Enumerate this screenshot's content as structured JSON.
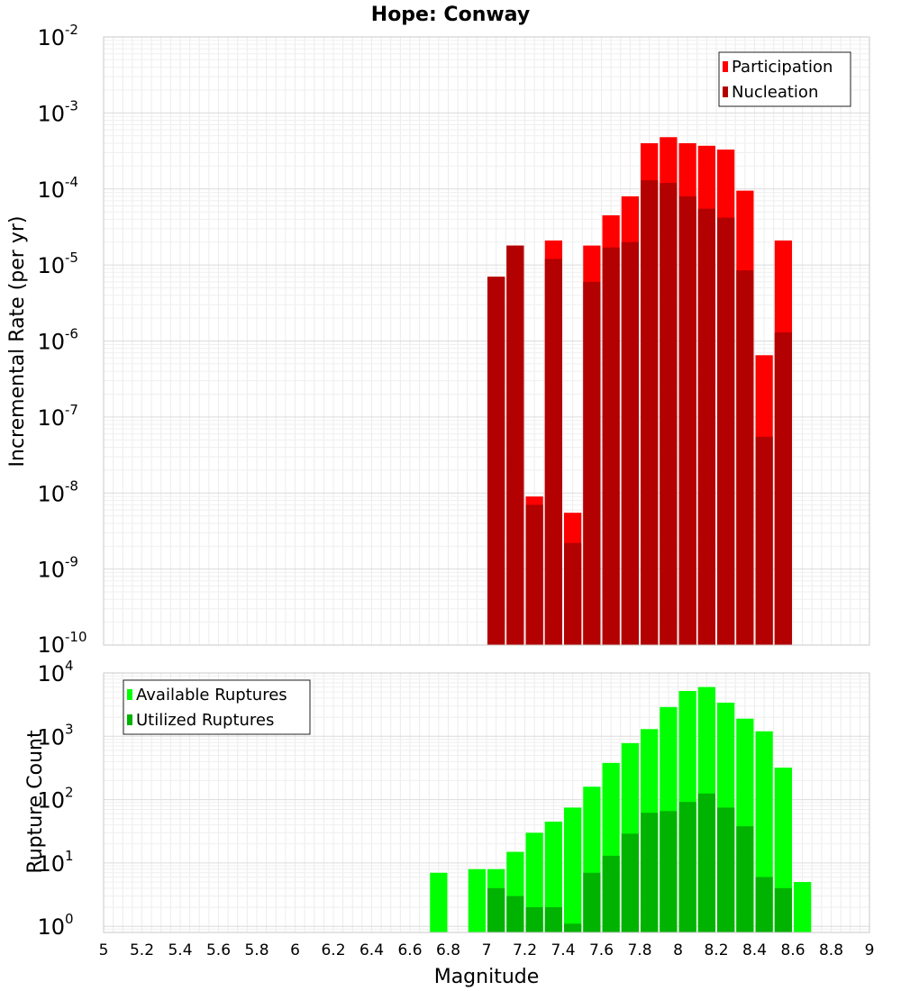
{
  "chart_data": [
    {
      "type": "bar",
      "title": "Hope: Conway",
      "xlabel": "",
      "ylabel": "Incremental Rate (per yr)",
      "yscale": "log",
      "xlim": [
        5,
        9
      ],
      "ylim": [
        1e-10,
        0.01
      ],
      "y_tick_exponents": [
        -10,
        -9,
        -8,
        -7,
        -6,
        -5,
        -4,
        -3,
        -2
      ],
      "grid": true,
      "legend_position": "top-right",
      "bar_width": 0.1,
      "x": [
        7.0,
        7.1,
        7.2,
        7.3,
        7.4,
        7.5,
        7.6,
        7.7,
        7.8,
        7.9,
        8.0,
        8.1,
        8.2,
        8.3,
        8.4,
        8.5
      ],
      "series": [
        {
          "name": "Participation",
          "color": "#ff0000",
          "values": [
            7e-06,
            1.8e-05,
            9e-09,
            2.1e-05,
            5.5e-09,
            1.8e-05,
            4.5e-05,
            8e-05,
            0.0004,
            0.00048,
            0.0004,
            0.00037,
            0.00033,
            9.5e-05,
            6.5e-07,
            2.1e-05
          ]
        },
        {
          "name": "Nucleation",
          "color": "#b30000",
          "values": [
            7e-06,
            1.8e-05,
            7e-09,
            1.2e-05,
            2.2e-09,
            6e-06,
            1.7e-05,
            2e-05,
            0.00013,
            0.00012,
            8e-05,
            5.5e-05,
            4.2e-05,
            8.5e-06,
            5.5e-08,
            1.3e-06
          ]
        }
      ]
    },
    {
      "type": "bar",
      "title": "",
      "xlabel": "Magnitude",
      "ylabel": "Rupture Count",
      "yscale": "log",
      "xlim": [
        5,
        9
      ],
      "ylim": [
        0.8,
        10000
      ],
      "y_tick_exponents": [
        0,
        1,
        2,
        3,
        4
      ],
      "x_ticks": [
        "5",
        "5.2",
        "5.4",
        "5.6",
        "5.8",
        "6",
        "6.2",
        "6.4",
        "6.6",
        "6.8",
        "7",
        "7.2",
        "7.4",
        "7.6",
        "7.8",
        "8",
        "8.2",
        "8.4",
        "8.6",
        "8.8",
        "9"
      ],
      "grid": true,
      "legend_position": "top-left",
      "bar_width": 0.1,
      "x": [
        6.7,
        6.9,
        7.0,
        7.1,
        7.2,
        7.3,
        7.4,
        7.5,
        7.6,
        7.7,
        7.8,
        7.9,
        8.0,
        8.1,
        8.2,
        8.3,
        8.4,
        8.5,
        8.6
      ],
      "series": [
        {
          "name": "Available Ruptures",
          "color": "#00ff00",
          "values": [
            7,
            8,
            8,
            15,
            30,
            45,
            75,
            160,
            380,
            780,
            1300,
            2900,
            5200,
            6000,
            3400,
            1900,
            1200,
            320,
            5
          ]
        },
        {
          "name": "Utilized Ruptures",
          "color": "#00b300",
          "values": [
            null,
            null,
            4,
            3,
            2,
            2,
            1.1,
            7,
            13,
            29,
            62,
            66,
            92,
            125,
            75,
            38,
            6,
            4,
            null
          ]
        }
      ]
    }
  ]
}
